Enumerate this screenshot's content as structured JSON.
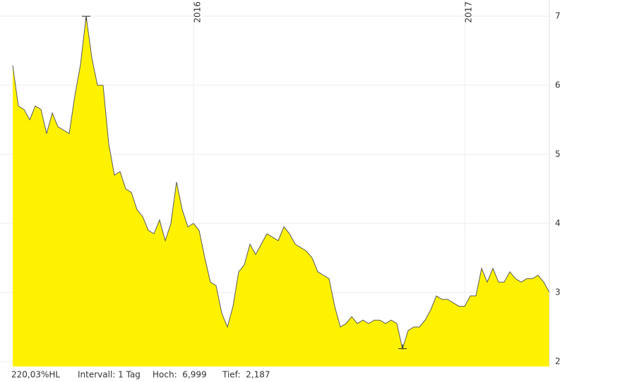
{
  "chart_data": {
    "type": "area",
    "categories": [
      null,
      null,
      null,
      null,
      null,
      null,
      null,
      null,
      null,
      null,
      null,
      null,
      null,
      null,
      null,
      null,
      null,
      null,
      null,
      null,
      null,
      null,
      null,
      null,
      null,
      null,
      null,
      null,
      null,
      null,
      null,
      null,
      "2016",
      null,
      null,
      null,
      null,
      null,
      null,
      null,
      null,
      null,
      null,
      null,
      null,
      null,
      null,
      null,
      null,
      null,
      null,
      null,
      null,
      null,
      null,
      null,
      null,
      null,
      null,
      null,
      null,
      null,
      null,
      null,
      null,
      null,
      null,
      null,
      null,
      null,
      null,
      null,
      null,
      null,
      null,
      null,
      null,
      null,
      null,
      null,
      "2017",
      null,
      null,
      null,
      null,
      null,
      null,
      null,
      null,
      null,
      null,
      null,
      null,
      null,
      null,
      null
    ],
    "values": [
      6.29,
      5.7,
      5.65,
      5.5,
      5.7,
      5.65,
      5.3,
      5.6,
      5.4,
      5.35,
      5.3,
      5.85,
      6.3,
      6.999,
      6.4,
      6.0,
      6.0,
      5.15,
      4.7,
      4.75,
      4.5,
      4.45,
      4.2,
      4.1,
      3.9,
      3.85,
      4.05,
      3.75,
      4.0,
      4.6,
      4.2,
      3.95,
      4.0,
      3.9,
      3.5,
      3.15,
      3.1,
      2.7,
      2.5,
      2.8,
      3.3,
      3.4,
      3.7,
      3.55,
      3.7,
      3.85,
      3.8,
      3.75,
      3.95,
      3.85,
      3.7,
      3.65,
      3.6,
      3.5,
      3.3,
      3.25,
      3.2,
      2.8,
      2.5,
      2.55,
      2.65,
      2.55,
      2.6,
      2.55,
      2.6,
      2.6,
      2.55,
      2.6,
      2.55,
      2.187,
      2.45,
      2.5,
      2.5,
      2.6,
      2.75,
      2.95,
      2.9,
      2.9,
      2.85,
      2.8,
      2.8,
      2.95,
      2.95,
      3.35,
      3.15,
      3.35,
      3.15,
      3.15,
      3.3,
      3.2,
      3.15,
      3.2,
      3.2,
      3.25,
      3.15,
      3.0
    ],
    "fill_color": "#fff200",
    "line_color": "#5a5a5a",
    "ylim": [
      2,
      7
    ],
    "yticks": [
      2,
      3,
      4,
      5,
      6,
      7
    ],
    "grid": true,
    "high_index": 13,
    "low_index": 69,
    "footer": [
      "220,03%HL",
      "Intervall: 1 Tag",
      "Hoch:  6,999",
      "Tief:  2,187"
    ]
  }
}
